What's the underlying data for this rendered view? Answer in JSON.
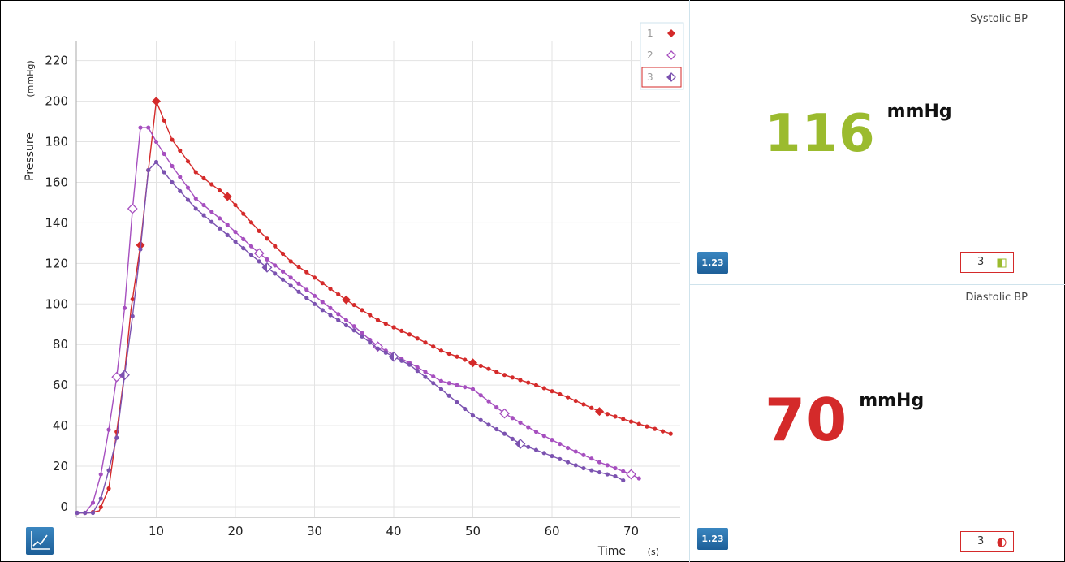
{
  "chart_data": {
    "type": "line",
    "xlabel": "Time",
    "xunit": "(s)",
    "ylabel": "Pressure",
    "yunit": "(mmHg)",
    "xlim": [
      0,
      77
    ],
    "ylim": [
      -3,
      230
    ],
    "xticks": [
      10,
      20,
      30,
      40,
      50,
      60,
      70
    ],
    "yticks": [
      0,
      20,
      40,
      60,
      80,
      100,
      120,
      140,
      160,
      180,
      200,
      220
    ],
    "grid": true,
    "legend": "top-right",
    "series": [
      {
        "name": "1",
        "color": "#d42a2a",
        "marker": "diamond-filled",
        "points": [
          [
            0,
            -3
          ],
          [
            1.5,
            -3
          ],
          [
            2.8,
            -2
          ],
          [
            4,
            9
          ],
          [
            5,
            37
          ],
          [
            6,
            66
          ],
          [
            6.8,
            97
          ],
          [
            8,
            129
          ],
          [
            9,
            166
          ],
          [
            10,
            200
          ],
          [
            12,
            181
          ],
          [
            15,
            165
          ],
          [
            19,
            153
          ],
          [
            23,
            136
          ],
          [
            27,
            121
          ],
          [
            30,
            113
          ],
          [
            34,
            102
          ],
          [
            38,
            92
          ],
          [
            42,
            85
          ],
          [
            46,
            77
          ],
          [
            50,
            71
          ],
          [
            54,
            65
          ],
          [
            58,
            60
          ],
          [
            62,
            54
          ],
          [
            66,
            47
          ],
          [
            70,
            42
          ],
          [
            75,
            36
          ]
        ],
        "key_markers_x": [
          8,
          10,
          19,
          34,
          50,
          66
        ]
      },
      {
        "name": "2",
        "color": "#a64fbf",
        "marker": "diamond-open",
        "points": [
          [
            0,
            -3
          ],
          [
            1,
            -3
          ],
          [
            2,
            2
          ],
          [
            3,
            16
          ],
          [
            4,
            38
          ],
          [
            5,
            64
          ],
          [
            6,
            98
          ],
          [
            7,
            147
          ],
          [
            8,
            187
          ],
          [
            9,
            187
          ],
          [
            10,
            180
          ],
          [
            12,
            168
          ],
          [
            15,
            152
          ],
          [
            19,
            139
          ],
          [
            23,
            125
          ],
          [
            27,
            113
          ],
          [
            31,
            101
          ],
          [
            35,
            89
          ],
          [
            38,
            79
          ],
          [
            42,
            71
          ],
          [
            46,
            62
          ],
          [
            50,
            58
          ],
          [
            54,
            46
          ],
          [
            58,
            37
          ],
          [
            62,
            29
          ],
          [
            66,
            22
          ],
          [
            70,
            16
          ],
          [
            71,
            14
          ]
        ],
        "key_markers_x": [
          5,
          7,
          23,
          38,
          54,
          70
        ]
      },
      {
        "name": "3",
        "color": "#7b52b0",
        "marker": "diamond-half",
        "points": [
          [
            0,
            -3
          ],
          [
            2,
            -3
          ],
          [
            3,
            4
          ],
          [
            4,
            18
          ],
          [
            5,
            34
          ],
          [
            6,
            65
          ],
          [
            7,
            94
          ],
          [
            8,
            127
          ],
          [
            9,
            166
          ],
          [
            10,
            170
          ],
          [
            12,
            160
          ],
          [
            15,
            147
          ],
          [
            19,
            134
          ],
          [
            23,
            121
          ],
          [
            27,
            109
          ],
          [
            31,
            97
          ],
          [
            35,
            87
          ],
          [
            38,
            78
          ],
          [
            42,
            70
          ],
          [
            46,
            58
          ],
          [
            50,
            45
          ],
          [
            54,
            36
          ],
          [
            56,
            31
          ],
          [
            60,
            25
          ],
          [
            64,
            19
          ],
          [
            68,
            15
          ],
          [
            69,
            13
          ]
        ],
        "key_markers_x": [
          6,
          24,
          40,
          56
        ]
      }
    ]
  },
  "systolic": {
    "title": "Systolic BP",
    "value": "116",
    "unit": "mmHg",
    "color": "#9bbb2e",
    "run": "3",
    "badge": "1.23"
  },
  "diastolic": {
    "title": "Diastolic BP",
    "value": "70",
    "unit": "mmHg",
    "color": "#d42a2a",
    "run": "3",
    "badge": "1.23"
  },
  "graph_button_icon": "line-graph-icon"
}
